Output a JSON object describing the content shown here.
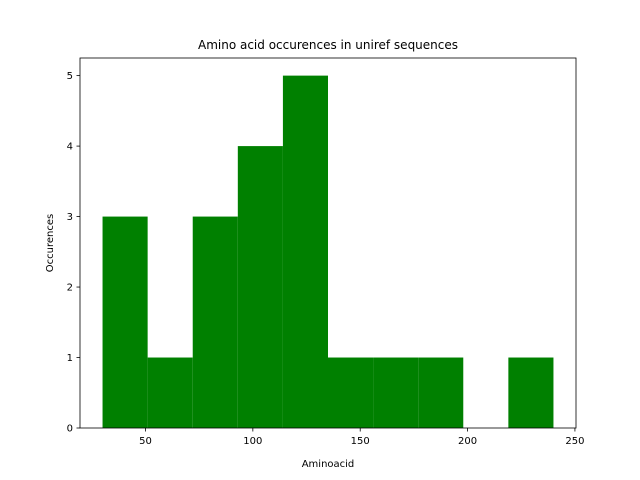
{
  "chart_data": {
    "type": "bar",
    "title": "Amino acid occurences in uniref sequences",
    "xlabel": "Aminoacid",
    "ylabel": "Occurences",
    "bar_color": "#008000",
    "bins": [
      {
        "x0": 30,
        "x1": 51,
        "value": 3
      },
      {
        "x0": 51,
        "x1": 72,
        "value": 1
      },
      {
        "x0": 72,
        "x1": 93,
        "value": 3
      },
      {
        "x0": 93,
        "x1": 114,
        "value": 4
      },
      {
        "x0": 114,
        "x1": 135,
        "value": 5
      },
      {
        "x0": 135,
        "x1": 156,
        "value": 1
      },
      {
        "x0": 156,
        "x1": 177,
        "value": 1
      },
      {
        "x0": 177,
        "x1": 198,
        "value": 1
      },
      {
        "x0": 198,
        "x1": 219,
        "value": 0
      },
      {
        "x0": 219,
        "x1": 240,
        "value": 1
      }
    ],
    "xlim": [
      19.5,
      250.5
    ],
    "ylim": [
      0,
      5.25
    ],
    "xticks": [
      50,
      100,
      150,
      200,
      250
    ],
    "yticks": [
      0,
      1,
      2,
      3,
      4,
      5
    ],
    "grid": false
  }
}
